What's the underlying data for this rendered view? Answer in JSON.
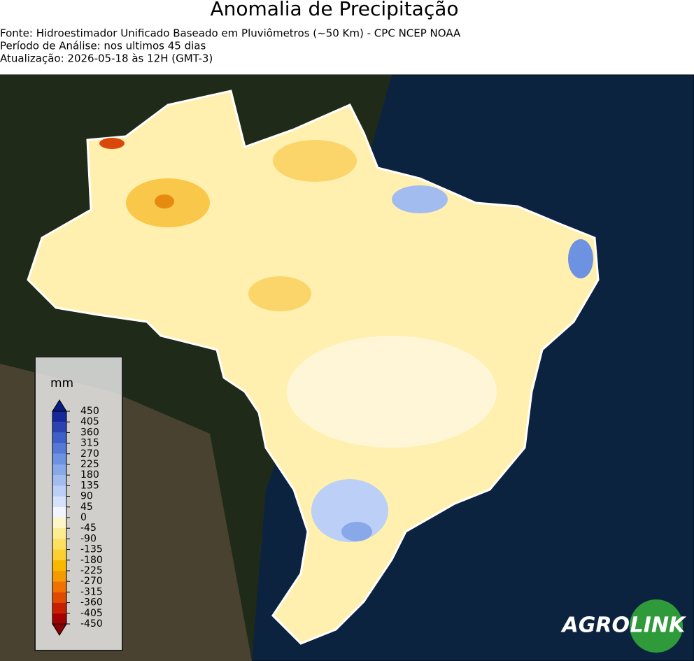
{
  "header": {
    "title": "Anomalia de Precipitação",
    "lines": [
      "Fonte: Hidroestimador Unificado Baseado em Pluviômetros (~50 Km) - CPC NCEP NOAA",
      "Período de Análise: nos ultimos 45 dias",
      "Atualização: 2026-05-18 às 12H (GMT-3)"
    ]
  },
  "legend": {
    "unit": "mm",
    "ticks": [
      -450,
      -405,
      -360,
      -315,
      -270,
      -225,
      -180,
      -135,
      -90,
      -45,
      0,
      45,
      90,
      135,
      180,
      225,
      270,
      315,
      360,
      405,
      450
    ],
    "colors": [
      "#a50000",
      "#c81e00",
      "#e04a00",
      "#f07000",
      "#f59a00",
      "#f9b800",
      "#fbd030",
      "#fde060",
      "#feec90",
      "#fff6c8",
      "#f2f5ff",
      "#d6e2fb",
      "#bccff6",
      "#a2bcf0",
      "#88a8ea",
      "#6e92e2",
      "#5679d6",
      "#3f5fc8",
      "#2a43b0",
      "#16289a"
    ],
    "under": "#8a0000",
    "over": "#0a1a80"
  },
  "logo": {
    "left": "AGRO",
    "right": "LINK"
  }
}
